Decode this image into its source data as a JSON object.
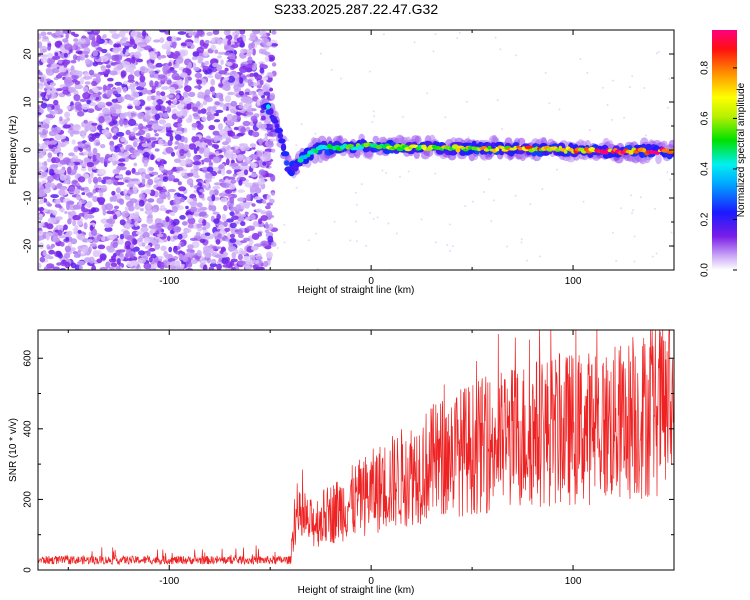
{
  "title": "S233.2025.287.22.47.G32",
  "chart_data": [
    {
      "type": "heatmap",
      "name": "spectrogram",
      "xlabel": "Height of straight line (km)",
      "ylabel": "Frequency (Hz)",
      "xlim": [
        -165,
        150
      ],
      "ylim": [
        -25,
        25
      ],
      "xticks": [
        -100,
        0,
        100
      ],
      "yticks": [
        -20,
        -10,
        0,
        10,
        20
      ],
      "colorbar": {
        "label": "Normalized spectral amplitude",
        "range": [
          0.0,
          0.95
        ],
        "ticks": [
          "0.0",
          "0.2",
          "0.4",
          "0.6",
          "0.8"
        ],
        "tick_values": [
          0.0,
          0.2,
          0.4,
          0.6,
          0.8
        ]
      },
      "noise_region_x": [
        -165,
        -52
      ],
      "signal_track": [
        {
          "x": -52,
          "y": 9.5
        },
        {
          "x": -48,
          "y": 7
        },
        {
          "x": -45,
          "y": 3
        },
        {
          "x": -42,
          "y": -2
        },
        {
          "x": -40,
          "y": -4.5
        },
        {
          "x": -37,
          "y": -3
        },
        {
          "x": -33,
          "y": -1.5
        },
        {
          "x": -28,
          "y": 0
        },
        {
          "x": -20,
          "y": 0.5
        },
        {
          "x": 0,
          "y": 0.8
        },
        {
          "x": 40,
          "y": 0.3
        },
        {
          "x": 80,
          "y": 0.2
        },
        {
          "x": 120,
          "y": -0.4
        },
        {
          "x": 150,
          "y": -0.2
        }
      ]
    },
    {
      "type": "line",
      "name": "snr",
      "xlabel": "Height of straight line (km)",
      "ylabel": "SNR (10 * v/v)",
      "xlim": [
        -165,
        150
      ],
      "ylim": [
        0,
        680
      ],
      "xticks": [
        -100,
        0,
        100
      ],
      "yticks": [
        0,
        200,
        400,
        600
      ],
      "color": "#ee2222",
      "envelope": [
        {
          "x": -165,
          "y": 28
        },
        {
          "x": -40,
          "y": 28
        },
        {
          "x": -38,
          "y": 150
        },
        {
          "x": -30,
          "y": 130
        },
        {
          "x": 0,
          "y": 220
        },
        {
          "x": 40,
          "y": 330
        },
        {
          "x": 80,
          "y": 390
        },
        {
          "x": 120,
          "y": 410
        },
        {
          "x": 150,
          "y": 470
        }
      ]
    }
  ]
}
